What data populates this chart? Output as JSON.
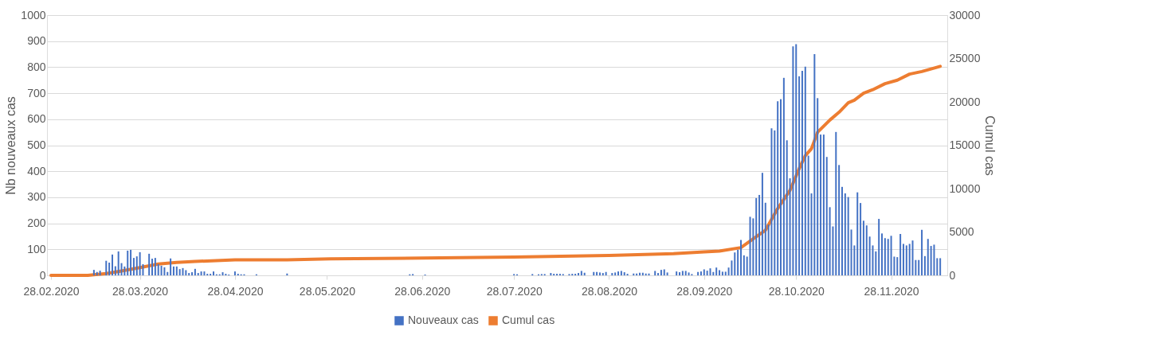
{
  "chart_data": {
    "type": "bar",
    "ylabel": "Nb nouveaux cas",
    "y2label": "Cumul cas",
    "xlim": [
      "2020-02-28",
      "2020-12-15"
    ],
    "xticks": [
      {
        "value": "2020-02-28",
        "label": "28.02.2020"
      },
      {
        "value": "2020-03-28",
        "label": "28.03.2020"
      },
      {
        "value": "2020-04-28",
        "label": "28.04.2020"
      },
      {
        "value": "2020-05-28",
        "label": "28.05.2020"
      },
      {
        "value": "2020-06-28",
        "label": "28.06.2020"
      },
      {
        "value": "2020-07-28",
        "label": "28.07.2020"
      },
      {
        "value": "2020-08-28",
        "label": "28.08.2020"
      },
      {
        "value": "2020-09-28",
        "label": "28.09.2020"
      },
      {
        "value": "2020-10-28",
        "label": "28.10.2020"
      },
      {
        "value": "2020-11-28",
        "label": "28.11.2020"
      }
    ],
    "ylim": [
      0,
      1000
    ],
    "yticks": [
      0,
      100,
      200,
      300,
      400,
      500,
      600,
      700,
      800,
      900,
      1000
    ],
    "y2lim": [
      0,
      30000
    ],
    "y2ticks": [
      0,
      5000,
      10000,
      15000,
      20000,
      25000,
      30000
    ],
    "grid": "y",
    "legend": "bottom",
    "series": [
      {
        "name": "Nouveaux cas",
        "color": "#4472c4",
        "x": [
          "2020-03-13",
          "2020-03-14",
          "2020-03-15",
          "2020-03-17",
          "2020-03-18",
          "2020-03-19",
          "2020-03-20",
          "2020-03-21",
          "2020-03-22",
          "2020-03-23",
          "2020-03-24",
          "2020-03-25",
          "2020-03-26",
          "2020-03-27",
          "2020-03-28",
          "2020-03-29",
          "2020-03-31",
          "2020-04-01",
          "2020-04-02",
          "2020-04-03",
          "2020-04-04",
          "2020-04-05",
          "2020-04-06",
          "2020-04-07",
          "2020-04-08",
          "2020-04-09",
          "2020-04-10",
          "2020-04-11",
          "2020-04-12",
          "2020-04-13",
          "2020-04-14",
          "2020-04-15",
          "2020-04-16",
          "2020-04-17",
          "2020-04-18",
          "2020-04-19",
          "2020-04-20",
          "2020-04-21",
          "2020-04-22",
          "2020-04-23",
          "2020-04-24",
          "2020-04-25",
          "2020-04-26",
          "2020-04-28",
          "2020-04-29",
          "2020-04-30",
          "2020-05-01",
          "2020-05-05",
          "2020-05-15",
          "2020-06-24",
          "2020-06-25",
          "2020-06-29",
          "2020-07-28",
          "2020-07-29",
          "2020-08-03",
          "2020-08-05",
          "2020-08-06",
          "2020-08-07",
          "2020-08-09",
          "2020-08-10",
          "2020-08-11",
          "2020-08-12",
          "2020-08-13",
          "2020-08-15",
          "2020-08-16",
          "2020-08-17",
          "2020-08-18",
          "2020-08-19",
          "2020-08-20",
          "2020-08-23",
          "2020-08-24",
          "2020-08-25",
          "2020-08-26",
          "2020-08-27",
          "2020-08-29",
          "2020-08-30",
          "2020-08-31",
          "2020-09-01",
          "2020-09-02",
          "2020-09-03",
          "2020-09-05",
          "2020-09-06",
          "2020-09-07",
          "2020-09-08",
          "2020-09-09",
          "2020-09-10",
          "2020-09-12",
          "2020-09-13",
          "2020-09-14",
          "2020-09-15",
          "2020-09-16",
          "2020-09-19",
          "2020-09-20",
          "2020-09-21",
          "2020-09-22",
          "2020-09-23",
          "2020-09-24",
          "2020-09-26",
          "2020-09-27",
          "2020-09-28",
          "2020-09-29",
          "2020-09-30",
          "2020-10-01",
          "2020-10-02",
          "2020-10-03",
          "2020-10-04",
          "2020-10-05",
          "2020-10-06",
          "2020-10-07",
          "2020-10-08",
          "2020-10-09",
          "2020-10-10",
          "2020-10-11",
          "2020-10-12",
          "2020-10-13",
          "2020-10-14",
          "2020-10-15",
          "2020-10-16",
          "2020-10-17",
          "2020-10-18",
          "2020-10-19",
          "2020-10-20",
          "2020-10-21",
          "2020-10-22",
          "2020-10-23",
          "2020-10-24",
          "2020-10-25",
          "2020-10-26",
          "2020-10-27",
          "2020-10-28",
          "2020-10-29",
          "2020-10-30",
          "2020-10-31",
          "2020-11-01",
          "2020-11-02",
          "2020-11-03",
          "2020-11-04",
          "2020-11-05",
          "2020-11-06",
          "2020-11-07",
          "2020-11-08",
          "2020-11-09",
          "2020-11-10",
          "2020-11-11",
          "2020-11-12",
          "2020-11-13",
          "2020-11-14",
          "2020-11-15",
          "2020-11-16",
          "2020-11-17",
          "2020-11-18",
          "2020-11-19",
          "2020-11-20",
          "2020-11-21",
          "2020-11-22",
          "2020-11-23",
          "2020-11-24",
          "2020-11-25",
          "2020-11-26",
          "2020-11-27",
          "2020-11-28",
          "2020-11-29",
          "2020-11-30",
          "2020-12-01",
          "2020-12-02",
          "2020-12-03",
          "2020-12-04",
          "2020-12-05",
          "2020-12-06",
          "2020-12-07",
          "2020-12-08",
          "2020-12-09",
          "2020-12-10",
          "2020-12-11",
          "2020-12-12",
          "2020-12-13",
          "2020-12-14"
        ],
        "values": [
          21,
          13,
          18,
          56,
          49,
          80,
          35,
          92,
          47,
          34,
          95,
          98,
          67,
          73,
          89,
          43,
          83,
          64,
          67,
          43,
          37,
          31,
          13,
          65,
          34,
          34,
          24,
          28,
          20,
          9,
          12,
          25,
          9,
          15,
          15,
          6,
          6,
          15,
          4,
          4,
          12,
          6,
          3,
          15,
          6,
          4,
          4,
          4,
          7,
          4,
          5,
          3,
          5,
          4,
          5,
          4,
          5,
          5,
          9,
          6,
          6,
          6,
          5,
          5,
          6,
          6,
          9,
          17,
          10,
          13,
          13,
          11,
          9,
          13,
          9,
          11,
          15,
          17,
          12,
          6,
          7,
          7,
          10,
          10,
          7,
          7,
          17,
          9,
          21,
          23,
          11,
          15,
          12,
          17,
          17,
          11,
          5,
          13,
          15,
          23,
          18,
          27,
          13,
          30,
          20,
          14,
          14,
          30,
          57,
          88,
          98,
          136,
          77,
          72,
          225,
          219,
          297,
          309,
          394,
          279,
          195,
          565,
          557,
          669,
          677,
          759,
          519,
          373,
          880,
          888,
          765,
          786,
          802,
          460,
          315,
          850,
          681,
          541,
          541,
          455,
          262,
          188,
          551,
          424,
          340,
          315,
          301,
          176,
          115,
          319,
          278,
          210,
          192,
          149,
          115,
          92,
          217,
          161,
          143,
          140,
          152,
          72,
          70,
          159,
          121,
          115,
          121,
          134,
          59,
          59,
          175,
          74,
          140,
          113,
          118,
          66,
          66
        ]
      },
      {
        "name": "Cumul cas",
        "type": "line",
        "axis": "y2",
        "color": "#ed7d31",
        "x": [
          "2020-02-28",
          "2020-03-11",
          "2020-03-17",
          "2020-03-22",
          "2020-03-28",
          "2020-04-03",
          "2020-04-09",
          "2020-04-15",
          "2020-04-28",
          "2020-05-15",
          "2020-05-29",
          "2020-06-28",
          "2020-07-28",
          "2020-08-28",
          "2020-09-18",
          "2020-09-28",
          "2020-10-03",
          "2020-10-10",
          "2020-10-14",
          "2020-10-18",
          "2020-10-22",
          "2020-10-26",
          "2020-10-29",
          "2020-10-31",
          "2020-11-02",
          "2020-11-04",
          "2020-11-08",
          "2020-11-11",
          "2020-11-14",
          "2020-11-16",
          "2020-11-19",
          "2020-11-22",
          "2020-11-26",
          "2020-11-30",
          "2020-12-04",
          "2020-12-08",
          "2020-12-14"
        ],
        "values": [
          0,
          0,
          200,
          500,
          900,
          1300,
          1500,
          1600,
          1800,
          1800,
          1900,
          2000,
          2100,
          2300,
          2500,
          2700,
          2800,
          3200,
          4200,
          5200,
          7700,
          9800,
          12300,
          13800,
          14600,
          16500,
          17900,
          18800,
          19900,
          20200,
          21000,
          21400,
          22100,
          22500,
          23200,
          23500,
          24100
        ]
      }
    ]
  }
}
